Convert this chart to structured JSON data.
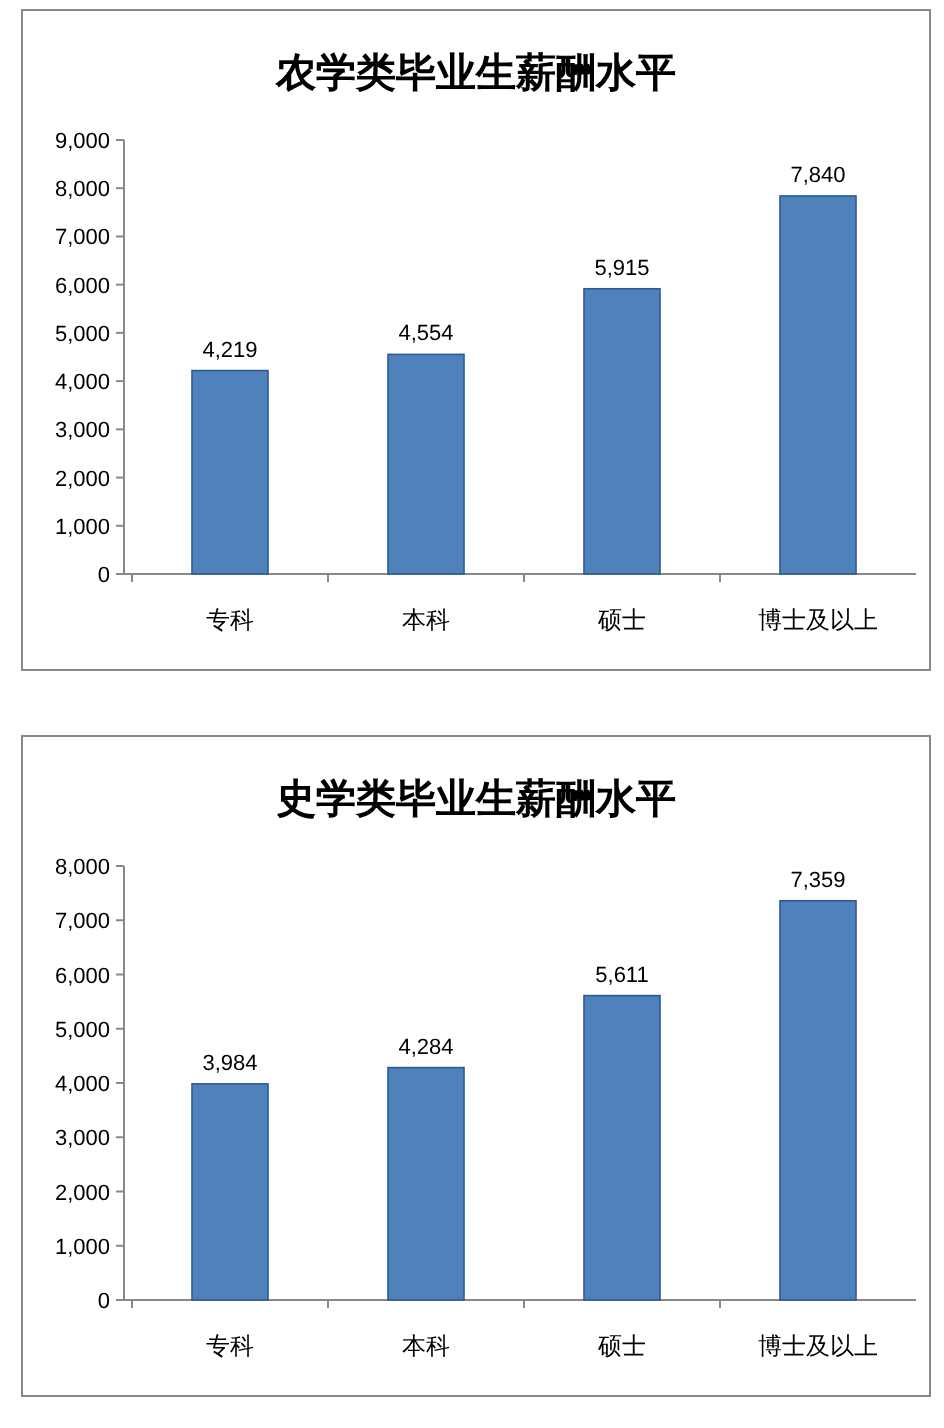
{
  "chart_data": [
    {
      "type": "bar",
      "title": "农学类毕业生薪酬水平",
      "categories": [
        "专科",
        "本科",
        "硕士",
        "博士及以上"
      ],
      "values": [
        4219,
        4554,
        5915,
        7840
      ],
      "value_labels": [
        "4,219",
        "4,554",
        "5,915",
        "7,840"
      ],
      "color": "#4f81bd",
      "ylim": [
        0,
        9000
      ],
      "yticks": [
        {
          "value": 0,
          "label": "0"
        },
        {
          "value": 1000,
          "label": "1,000"
        },
        {
          "value": 2000,
          "label": "2,000"
        },
        {
          "value": 3000,
          "label": "3,000"
        },
        {
          "value": 4000,
          "label": "4,000"
        },
        {
          "value": 5000,
          "label": "5,000"
        },
        {
          "value": 6000,
          "label": "6,000"
        },
        {
          "value": 7000,
          "label": "7,000"
        },
        {
          "value": 8000,
          "label": "8,000"
        },
        {
          "value": 9000,
          "label": "9,000"
        }
      ]
    },
    {
      "type": "bar",
      "title": "史学类毕业生薪酬水平",
      "categories": [
        "专科",
        "本科",
        "硕士",
        "博士及以上"
      ],
      "values": [
        3984,
        4284,
        5611,
        7359
      ],
      "value_labels": [
        "3,984",
        "4,284",
        "5,611",
        "7,359"
      ],
      "color": "#4f81bd",
      "ylim": [
        0,
        8000
      ],
      "yticks": [
        {
          "value": 0,
          "label": "0"
        },
        {
          "value": 1000,
          "label": "1,000"
        },
        {
          "value": 2000,
          "label": "2,000"
        },
        {
          "value": 3000,
          "label": "3,000"
        },
        {
          "value": 4000,
          "label": "4,000"
        },
        {
          "value": 5000,
          "label": "5,000"
        },
        {
          "value": 6000,
          "label": "6,000"
        },
        {
          "value": 7000,
          "label": "7,000"
        },
        {
          "value": 8000,
          "label": "8,000"
        }
      ]
    }
  ]
}
